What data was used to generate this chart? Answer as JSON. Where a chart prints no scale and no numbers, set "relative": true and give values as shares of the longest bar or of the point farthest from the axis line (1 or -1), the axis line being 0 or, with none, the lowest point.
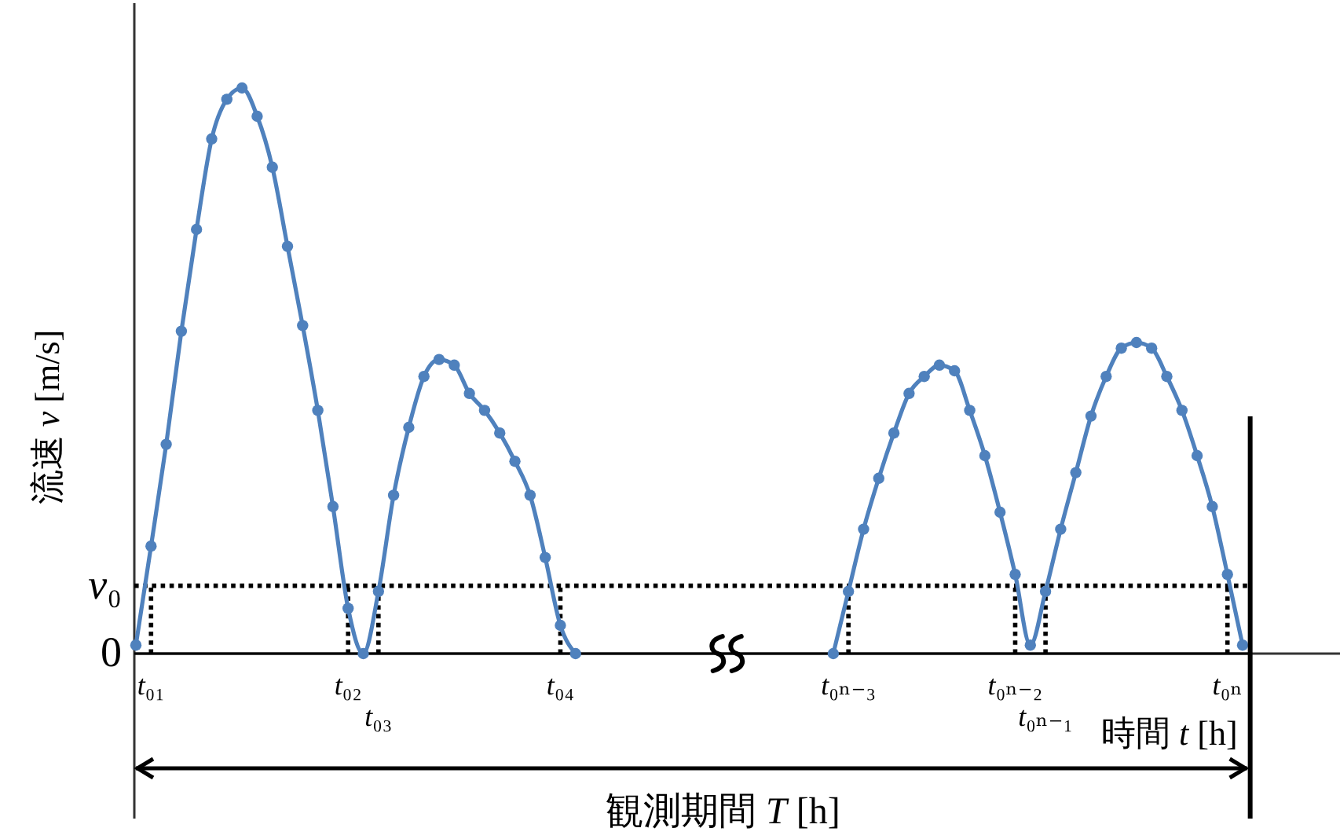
{
  "chart_data": {
    "type": "line",
    "relative": true,
    "marker": "circle",
    "line_style": "solid",
    "xlabel": "時間 t [h]",
    "ylabel": "流速 v [m/s]",
    "categories": [
      null,
      "t₀₁",
      null,
      null,
      null,
      null,
      null,
      null,
      null,
      null,
      null,
      null,
      null,
      null,
      "t₀₂",
      null,
      "t₀₃",
      null,
      null,
      null,
      null,
      null,
      null,
      null,
      null,
      null,
      null,
      null,
      "t₀₄",
      null,
      null,
      null,
      null,
      null,
      null,
      null,
      null,
      null,
      null,
      null,
      null,
      null,
      null,
      null,
      null,
      null,
      null,
      "t₀ₙ₋₃",
      null,
      null,
      null,
      null,
      null,
      null,
      null,
      null,
      null,
      null,
      "t₀ₙ₋₂",
      null,
      "t₀ₙ₋₁",
      null,
      null,
      null,
      null,
      null,
      null,
      null,
      null,
      null,
      null,
      null,
      "t₀ₙ",
      null
    ],
    "series": [
      {
        "color": "#4f81bd",
        "values": [
          0.015,
          0.19,
          0.37,
          0.57,
          0.75,
          0.91,
          0.98,
          1,
          0.95,
          0.86,
          0.72,
          0.58,
          0.43,
          0.26,
          0.08,
          0,
          0.11,
          0.28,
          0.4,
          0.49,
          0.52,
          0.51,
          0.46,
          0.43,
          0.39,
          0.34,
          0.28,
          0.17,
          0.05,
          0,
          null,
          null,
          null,
          null,
          null,
          null,
          null,
          null,
          null,
          null,
          null,
          null,
          null,
          null,
          null,
          null,
          0,
          0.11,
          0.22,
          0.31,
          0.39,
          0.46,
          0.49,
          0.51,
          0.5,
          0.43,
          0.35,
          0.25,
          0.14,
          0.015,
          0.11,
          0.22,
          0.32,
          0.42,
          0.49,
          0.54,
          0.55,
          0.54,
          0.49,
          0.43,
          0.35,
          0.26,
          0.14,
          0.015
        ]
      }
    ],
    "ref_lines": [
      {
        "axis": "y",
        "value": 0,
        "label": "0"
      },
      {
        "axis": "y",
        "value": 0.12,
        "label": "v₀",
        "line_style": "dotted"
      },
      {
        "axis": "x",
        "value": "t₀₁",
        "line_style": "dotted"
      },
      {
        "axis": "x",
        "value": "t₀₂",
        "line_style": "dotted"
      },
      {
        "axis": "x",
        "value": "t₀₃",
        "line_style": "dotted"
      },
      {
        "axis": "x",
        "value": "t₀₄",
        "line_style": "dotted"
      },
      {
        "axis": "x",
        "value": "t₀ₙ₋₃",
        "line_style": "dotted"
      },
      {
        "axis": "x",
        "value": "t₀ₙ₋₂",
        "line_style": "dotted"
      },
      {
        "axis": "x",
        "value": "t₀ₙ₋₁",
        "line_style": "dotted"
      },
      {
        "axis": "x",
        "value": "t₀ₙ",
        "line_style": "dotted"
      }
    ],
    "annotations": [
      "観測期間 T [h]"
    ]
  }
}
